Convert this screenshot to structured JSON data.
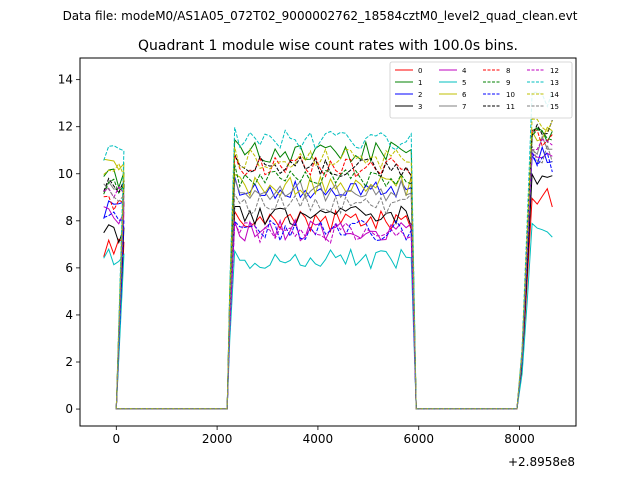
{
  "suptitle": "Data file: modeM0/AS1A05_072T02_9000002762_18584cztM0_level2_quad_clean.evt",
  "chart_data": {
    "type": "line",
    "title": "Quadrant 1 module wise count rates with 100.0s bins.",
    "xlabel": "",
    "ylabel": "",
    "x_offset_label": "+2.8958e8",
    "xlim": [
      -720,
      9120
    ],
    "ylim": [
      -0.72,
      14.92
    ],
    "x_ticks": [
      0,
      2000,
      4000,
      6000,
      8000
    ],
    "x_tick_labels": [
      "0",
      "2000",
      "4000",
      "6000",
      "8000"
    ],
    "y_ticks": [
      0,
      2,
      4,
      6,
      8,
      10,
      12,
      14
    ],
    "y_tick_labels": [
      "0",
      "2",
      "4",
      "6",
      "8",
      "10",
      "12",
      "14"
    ],
    "grid": false,
    "legend_position": "top-right",
    "legend_columns": 4,
    "segments": [
      {
        "x_start": -250,
        "count": 5,
        "step": 100,
        "kind": "on"
      },
      {
        "x_start": 0,
        "count": 23,
        "step": 100,
        "kind": "off"
      },
      {
        "x_start": 2250,
        "count": 37,
        "step": 100,
        "kind": "on"
      },
      {
        "x_start": 5950,
        "count": 21,
        "step": 100,
        "kind": "off"
      },
      {
        "x_start": 8050,
        "count": 7,
        "step": 100,
        "kind": "on"
      }
    ],
    "series": [
      {
        "name": "0",
        "color": "#ff0000",
        "dash": "solid",
        "levels": [
          6.8,
          8.0,
          9.0
        ]
      },
      {
        "name": "1",
        "color": "#008000",
        "dash": "solid",
        "levels": [
          9.8,
          10.9,
          11.5
        ]
      },
      {
        "name": "2",
        "color": "#0000ff",
        "dash": "solid",
        "levels": [
          8.5,
          9.4,
          10.8
        ]
      },
      {
        "name": "3",
        "color": "#000000",
        "dash": "solid",
        "levels": [
          7.5,
          8.2,
          9.7
        ]
      },
      {
        "name": "4",
        "color": "#bf00bf",
        "dash": "solid",
        "levels": [
          8.2,
          7.6,
          11.0
        ]
      },
      {
        "name": "5",
        "color": "#00bfbf",
        "dash": "solid",
        "levels": [
          6.5,
          6.4,
          7.5
        ]
      },
      {
        "name": "6",
        "color": "#bfbf00",
        "dash": "solid",
        "levels": [
          10.3,
          9.5,
          11.7
        ]
      },
      {
        "name": "7",
        "color": "#808080",
        "dash": "solid",
        "levels": [
          9.4,
          9.3,
          11.2
        ]
      },
      {
        "name": "8",
        "color": "#ff0000",
        "dash": "dashed",
        "levels": [
          8.8,
          10.3,
          11.6
        ]
      },
      {
        "name": "9",
        "color": "#008000",
        "dash": "dashed",
        "levels": [
          9.4,
          9.9,
          11.8
        ]
      },
      {
        "name": "10",
        "color": "#0000ff",
        "dash": "dashed",
        "levels": [
          8.0,
          7.6,
          10.5
        ]
      },
      {
        "name": "11",
        "color": "#000000",
        "dash": "dashed",
        "levels": [
          9.6,
          10.3,
          11.9
        ]
      },
      {
        "name": "12",
        "color": "#bf00bf",
        "dash": "dashed",
        "levels": [
          9.2,
          7.5,
          11.3
        ]
      },
      {
        "name": "13",
        "color": "#00bfbf",
        "dash": "dashed",
        "levels": [
          11.0,
          11.4,
          13.1
        ]
      },
      {
        "name": "14",
        "color": "#bfbf00",
        "dash": "dashed",
        "levels": [
          10.0,
          10.6,
          12.2
        ]
      },
      {
        "name": "15",
        "color": "#808080",
        "dash": "dashed",
        "levels": [
          9.2,
          8.7,
          10.9
        ]
      }
    ]
  }
}
